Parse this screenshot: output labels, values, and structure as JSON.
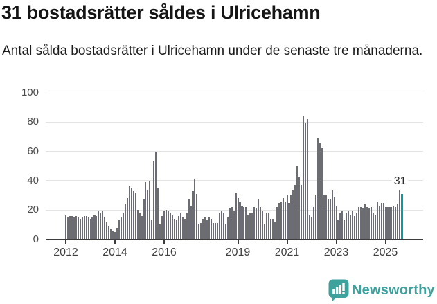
{
  "header": {
    "title": "31 bostadsrätter såldes i Ulricehamn",
    "subtitle": "Antal sålda bostadsrätter i Ulricehamn under de senaste tre månaderna."
  },
  "chart_data": {
    "type": "bar",
    "title": "31 bostadsrätter såldes i Ulricehamn",
    "xlabel": "",
    "ylabel": "",
    "x_unit": "month",
    "x_start": "2012-01",
    "x_end": "2025-09",
    "ylim": [
      0,
      100
    ],
    "yticks": [
      0,
      20,
      40,
      60,
      80,
      100
    ],
    "xticks": [
      2012,
      2014,
      2016,
      2019,
      2021,
      2023,
      2025
    ],
    "grid": true,
    "legend": "none",
    "bar_color": "#6C6C74",
    "axis_color": "#3d3d3d",
    "grid_color": "#e4e4e4",
    "values": [
      17,
      15,
      16,
      16,
      15,
      16,
      15,
      14,
      15,
      16,
      16,
      15,
      14,
      15,
      17,
      16,
      19,
      18,
      19,
      15,
      12,
      9,
      7,
      6,
      5,
      8,
      13,
      15,
      18,
      24,
      28,
      36,
      35,
      33,
      32,
      20,
      18,
      16,
      27,
      39,
      34,
      40,
      13,
      53,
      60,
      35,
      10,
      16,
      19,
      20,
      19,
      18,
      17,
      14,
      13,
      16,
      18,
      15,
      14,
      18,
      27,
      23,
      33,
      41,
      31,
      10,
      11,
      14,
      15,
      13,
      15,
      14,
      11,
      11,
      11,
      18,
      19,
      18,
      10,
      15,
      21,
      22,
      19,
      32,
      28,
      26,
      23,
      22,
      22,
      17,
      18,
      18,
      22,
      21,
      27,
      22,
      19,
      10,
      18,
      18,
      14,
      14,
      12,
      22,
      25,
      26,
      28,
      26,
      30,
      25,
      30,
      34,
      37,
      50,
      43,
      37,
      84,
      79,
      82,
      17,
      15,
      22,
      30,
      69,
      66,
      62,
      30,
      30,
      27,
      27,
      34,
      29,
      23,
      13,
      18,
      19,
      13,
      18,
      19,
      17,
      19,
      16,
      18,
      22,
      22,
      21,
      24,
      22,
      21,
      22,
      18,
      17,
      26,
      23,
      25,
      25,
      22,
      22,
      22,
      22,
      23,
      22,
      24,
      34,
      31
    ],
    "highlight": {
      "index": 164,
      "month": "2025-09",
      "value": 31,
      "label": "31",
      "color": "#079EA1"
    }
  },
  "footer": {
    "brand": "Newsworthy",
    "brand_color": "#3EA29C",
    "icon": "newsworthy-chart-bubble-icon"
  }
}
